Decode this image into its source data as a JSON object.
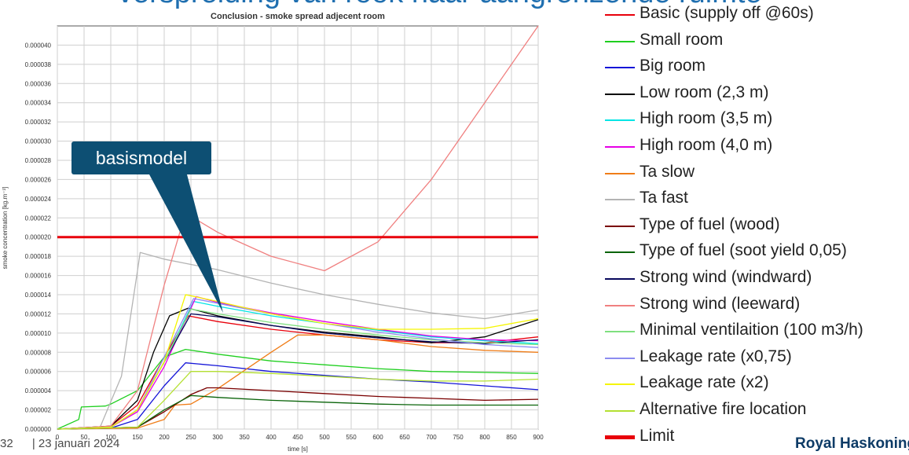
{
  "headline": "verspreiding van rook naar aangrenzende ruimte",
  "footer": {
    "page": "32",
    "date": "| 23 januari 2024"
  },
  "brand": "Royal HaskoningDHV",
  "callout": {
    "text": "basismodel"
  },
  "chart_data": {
    "type": "line",
    "title": "Conclusion - smoke spread adjecent room",
    "xlabel": "time [s]",
    "ylabel": "smoke concentration [kg.m⁻³]",
    "xlim": [
      0,
      900
    ],
    "ylim": [
      0,
      4.2e-05
    ],
    "grid": true,
    "legend_position": "right",
    "x_ticks": [
      "0",
      "50",
      "100",
      "150",
      "200",
      "250",
      "300",
      "350",
      "400",
      "450",
      "500",
      "550",
      "600",
      "650",
      "700",
      "750",
      "800",
      "850",
      "900"
    ],
    "y_ticks": [
      "0.000000",
      "0.000002",
      "0.000004",
      "0.000006",
      "0.000008",
      "0.000010",
      "0.000012",
      "0.000014",
      "0.000016",
      "0.000018",
      "0.000020",
      "0.000022",
      "0.000024",
      "0.000026",
      "0.000028",
      "0.000030",
      "0.000032",
      "0.000034",
      "0.000036",
      "0.000038",
      "0.000040"
    ],
    "series": [
      {
        "name": "Basic (supply off @60s)",
        "color": "#e8000b",
        "points": [
          [
            0,
            0
          ],
          [
            100,
            3e-07
          ],
          [
            150,
            2.5e-06
          ],
          [
            200,
            7.5e-06
          ],
          [
            245,
            1.18e-05
          ],
          [
            300,
            1.12e-05
          ],
          [
            400,
            1.04e-05
          ],
          [
            500,
            9.8e-06
          ],
          [
            600,
            9.3e-06
          ],
          [
            700,
            9e-06
          ],
          [
            800,
            9e-06
          ],
          [
            900,
            9.6e-06
          ]
        ]
      },
      {
        "name": "Small room",
        "color": "#1fcf1f",
        "points": [
          [
            0,
            0
          ],
          [
            40,
            1e-06
          ],
          [
            45,
            2.3e-06
          ],
          [
            90,
            2.4e-06
          ],
          [
            100,
            2.6e-06
          ],
          [
            150,
            4e-06
          ],
          [
            200,
            7.5e-06
          ],
          [
            240,
            8.3e-06
          ],
          [
            300,
            7.8e-06
          ],
          [
            400,
            7.1e-06
          ],
          [
            500,
            6.7e-06
          ],
          [
            600,
            6.3e-06
          ],
          [
            700,
            6e-06
          ],
          [
            800,
            5.9e-06
          ],
          [
            900,
            5.8e-06
          ]
        ]
      },
      {
        "name": "Big room",
        "color": "#1515d8",
        "points": [
          [
            0,
            0
          ],
          [
            100,
            1e-07
          ],
          [
            150,
            1e-06
          ],
          [
            200,
            4.5e-06
          ],
          [
            240,
            6.9e-06
          ],
          [
            300,
            6.6e-06
          ],
          [
            400,
            6e-06
          ],
          [
            500,
            5.6e-06
          ],
          [
            600,
            5.2e-06
          ],
          [
            700,
            4.9e-06
          ],
          [
            800,
            4.5e-06
          ],
          [
            900,
            4.1e-06
          ]
        ]
      },
      {
        "name": "Low room (2,3 m)",
        "color": "#000000",
        "points": [
          [
            0,
            0
          ],
          [
            100,
            3e-07
          ],
          [
            150,
            3e-06
          ],
          [
            180,
            8e-06
          ],
          [
            210,
            1.18e-05
          ],
          [
            245,
            1.26e-05
          ],
          [
            300,
            1.18e-05
          ],
          [
            400,
            1.08e-05
          ],
          [
            500,
            1.01e-05
          ],
          [
            600,
            9.6e-06
          ],
          [
            700,
            9e-06
          ],
          [
            800,
            9.6e-06
          ],
          [
            900,
            1.14e-05
          ]
        ]
      },
      {
        "name": "High room (3,5 m)",
        "color": "#00e5e5",
        "points": [
          [
            0,
            0
          ],
          [
            100,
            2e-07
          ],
          [
            150,
            2e-06
          ],
          [
            200,
            7e-06
          ],
          [
            255,
            1.33e-05
          ],
          [
            300,
            1.28e-05
          ],
          [
            400,
            1.18e-05
          ],
          [
            500,
            1.1e-05
          ],
          [
            600,
            1.03e-05
          ],
          [
            700,
            9.6e-06
          ],
          [
            800,
            9.2e-06
          ],
          [
            900,
            8.9e-06
          ]
        ]
      },
      {
        "name": "High room (4,0 m)",
        "color": "#e600e6",
        "points": [
          [
            0,
            0
          ],
          [
            100,
            2e-07
          ],
          [
            150,
            1.8e-06
          ],
          [
            200,
            6.5e-06
          ],
          [
            260,
            1.38e-05
          ],
          [
            300,
            1.32e-05
          ],
          [
            400,
            1.21e-05
          ],
          [
            500,
            1.12e-05
          ],
          [
            600,
            1.04e-05
          ],
          [
            700,
            9.7e-06
          ],
          [
            800,
            9.3e-06
          ],
          [
            900,
            9.2e-06
          ]
        ]
      },
      {
        "name": "Ta slow",
        "color": "#f07d18",
        "points": [
          [
            0,
            0
          ],
          [
            150,
            1e-07
          ],
          [
            200,
            1e-06
          ],
          [
            220,
            2.5e-06
          ],
          [
            250,
            2.6e-06
          ],
          [
            300,
            4.2e-06
          ],
          [
            400,
            8e-06
          ],
          [
            450,
            9.8e-06
          ],
          [
            500,
            9.8e-06
          ],
          [
            600,
            9.3e-06
          ],
          [
            700,
            8.6e-06
          ],
          [
            800,
            8.2e-06
          ],
          [
            900,
            8e-06
          ]
        ]
      },
      {
        "name": "Ta fast",
        "color": "#b4b4b4",
        "points": [
          [
            0,
            0
          ],
          [
            80,
            2e-07
          ],
          [
            120,
            5.5e-06
          ],
          [
            150,
            1.65e-05
          ],
          [
            155,
            1.84e-05
          ],
          [
            200,
            1.77e-05
          ],
          [
            300,
            1.66e-05
          ],
          [
            400,
            1.52e-05
          ],
          [
            500,
            1.4e-05
          ],
          [
            600,
            1.3e-05
          ],
          [
            700,
            1.21e-05
          ],
          [
            800,
            1.15e-05
          ],
          [
            900,
            1.24e-05
          ]
        ]
      },
      {
        "name": "Type of fuel (wood)",
        "color": "#7a0000",
        "points": [
          [
            0,
            0
          ],
          [
            150,
            2e-07
          ],
          [
            200,
            1.8e-06
          ],
          [
            250,
            3.6e-06
          ],
          [
            280,
            4.3e-06
          ],
          [
            300,
            4.3e-06
          ],
          [
            400,
            4e-06
          ],
          [
            500,
            3.7e-06
          ],
          [
            600,
            3.4e-06
          ],
          [
            700,
            3.2e-06
          ],
          [
            800,
            3e-06
          ],
          [
            900,
            3.1e-06
          ]
        ]
      },
      {
        "name": "Type of fuel (soot yield 0,05)",
        "color": "#0a640a",
        "points": [
          [
            0,
            0
          ],
          [
            150,
            2e-07
          ],
          [
            200,
            2e-06
          ],
          [
            250,
            3.5e-06
          ],
          [
            300,
            3.3e-06
          ],
          [
            400,
            3e-06
          ],
          [
            500,
            2.8e-06
          ],
          [
            600,
            2.6e-06
          ],
          [
            700,
            2.5e-06
          ],
          [
            800,
            2.5e-06
          ],
          [
            900,
            2.5e-06
          ]
        ]
      },
      {
        "name": "Strong wind (windward)",
        "color": "#08085c",
        "points": [
          [
            0,
            0
          ],
          [
            100,
            2e-07
          ],
          [
            150,
            2e-06
          ],
          [
            200,
            7e-06
          ],
          [
            250,
            1.2e-05
          ],
          [
            300,
            1.17e-05
          ],
          [
            400,
            1.08e-05
          ],
          [
            500,
            1e-05
          ],
          [
            600,
            9.5e-06
          ],
          [
            700,
            9.1e-06
          ],
          [
            800,
            8.9e-06
          ],
          [
            900,
            9.3e-06
          ]
        ]
      },
      {
        "name": "Strong wind (leeward)",
        "color": "#f08080",
        "points": [
          [
            0,
            0
          ],
          [
            100,
            3e-07
          ],
          [
            150,
            4e-06
          ],
          [
            200,
            1.5e-05
          ],
          [
            240,
            2.25e-05
          ],
          [
            300,
            2.05e-05
          ],
          [
            400,
            1.8e-05
          ],
          [
            500,
            1.65e-05
          ],
          [
            600,
            1.95e-05
          ],
          [
            700,
            2.6e-05
          ],
          [
            800,
            3.4e-05
          ],
          [
            900,
            4.2e-05
          ]
        ]
      },
      {
        "name": "Minimal ventilaition (100 m3/h)",
        "color": "#7fe07f",
        "points": [
          [
            0,
            0
          ],
          [
            100,
            2e-07
          ],
          [
            150,
            2e-06
          ],
          [
            200,
            7e-06
          ],
          [
            250,
            1.25e-05
          ],
          [
            300,
            1.2e-05
          ],
          [
            400,
            1.11e-05
          ],
          [
            500,
            1.04e-05
          ],
          [
            600,
            9.8e-06
          ],
          [
            700,
            9.3e-06
          ],
          [
            800,
            9e-06
          ],
          [
            900,
            8.8e-06
          ]
        ]
      },
      {
        "name": "Leakage rate (x0,75)",
        "color": "#8c8cf0",
        "points": [
          [
            0,
            0
          ],
          [
            100,
            2e-07
          ],
          [
            150,
            2e-06
          ],
          [
            200,
            7.5e-06
          ],
          [
            255,
            1.36e-05
          ],
          [
            300,
            1.31e-05
          ],
          [
            400,
            1.2e-05
          ],
          [
            500,
            1.1e-05
          ],
          [
            600,
            1.01e-05
          ],
          [
            700,
            9.4e-06
          ],
          [
            800,
            8.8e-06
          ],
          [
            900,
            8.5e-06
          ]
        ]
      },
      {
        "name": "Leakage rate (x2)",
        "color": "#f5f500",
        "points": [
          [
            0,
            0
          ],
          [
            100,
            2e-07
          ],
          [
            150,
            2e-06
          ],
          [
            200,
            7e-06
          ],
          [
            240,
            1.4e-05
          ],
          [
            300,
            1.33e-05
          ],
          [
            400,
            1.2e-05
          ],
          [
            500,
            1.1e-05
          ],
          [
            600,
            1.04e-05
          ],
          [
            700,
            1.04e-05
          ],
          [
            800,
            1.05e-05
          ],
          [
            900,
            1.15e-05
          ]
        ]
      },
      {
        "name": "Alternative fire location",
        "color": "#b4e032",
        "points": [
          [
            0,
            0
          ],
          [
            150,
            2e-07
          ],
          [
            200,
            3e-06
          ],
          [
            250,
            6e-06
          ],
          [
            300,
            6e-06
          ],
          [
            400,
            5.8e-06
          ],
          [
            500,
            5.5e-06
          ],
          [
            600,
            5.2e-06
          ],
          [
            700,
            5e-06
          ],
          [
            800,
            5e-06
          ],
          [
            900,
            5.2e-06
          ]
        ]
      },
      {
        "name": "Limit",
        "color": "#e8000b",
        "thick": true,
        "points": [
          [
            0,
            2e-05
          ],
          [
            900,
            2e-05
          ]
        ]
      }
    ]
  }
}
